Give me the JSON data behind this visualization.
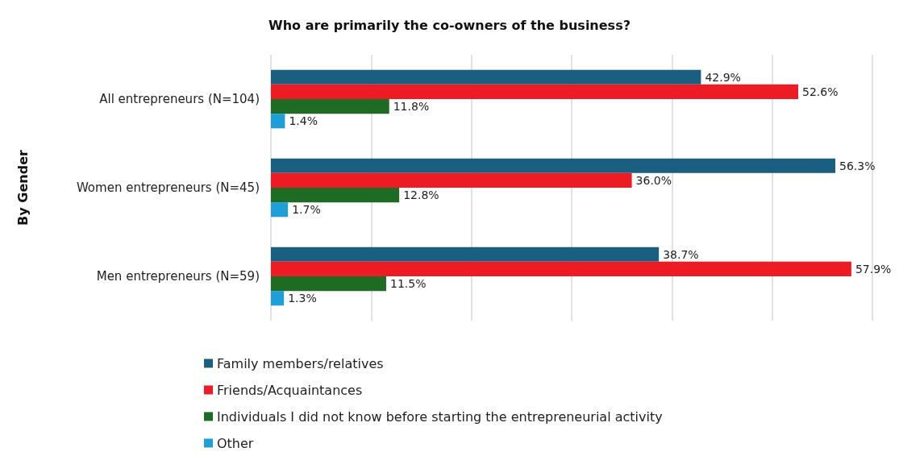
{
  "chart_data": {
    "type": "bar",
    "orientation": "horizontal",
    "title": "Who are primarily the co-owners of the business?",
    "ylabel": "By Gender",
    "categories": [
      "All entrepreneurs (N=104)",
      "Women entrepreneurs (N=45)",
      "Men entrepreneurs (N=59)"
    ],
    "series": [
      {
        "name": "Family members/relatives",
        "color": "#1a5e80",
        "values": [
          42.9,
          56.3,
          38.7
        ],
        "value_labels": [
          "42.9%",
          "56.3%",
          "38.7%"
        ]
      },
      {
        "name": "Friends/Acquaintances",
        "color": "#ed1c24",
        "values": [
          52.6,
          36.0,
          57.9
        ],
        "value_labels": [
          "52.6%",
          "36.0%",
          "57.9%"
        ]
      },
      {
        "name": "Individuals I did not know before starting the entrepreneurial activity",
        "color": "#1e6b23",
        "values": [
          11.8,
          12.8,
          11.5
        ],
        "value_labels": [
          "11.8%",
          "12.8%",
          "11.5%"
        ]
      },
      {
        "name": "Other",
        "color": "#1f9fd8",
        "values": [
          1.4,
          1.7,
          1.3
        ],
        "value_labels": [
          "1.4%",
          "1.7%",
          "1.3%"
        ]
      }
    ],
    "xlim": [
      0,
      60
    ],
    "xticks": [
      {
        "value": 0,
        "label": null
      },
      {
        "value": 10,
        "label": null
      },
      {
        "value": 20,
        "label": null
      },
      {
        "value": 30,
        "label": null
      },
      {
        "value": 40,
        "label": null
      },
      {
        "value": 50,
        "label": null
      },
      {
        "value": 60,
        "label": null
      }
    ],
    "tick_labels": "y",
    "grid": "x",
    "legend": "bottom"
  }
}
